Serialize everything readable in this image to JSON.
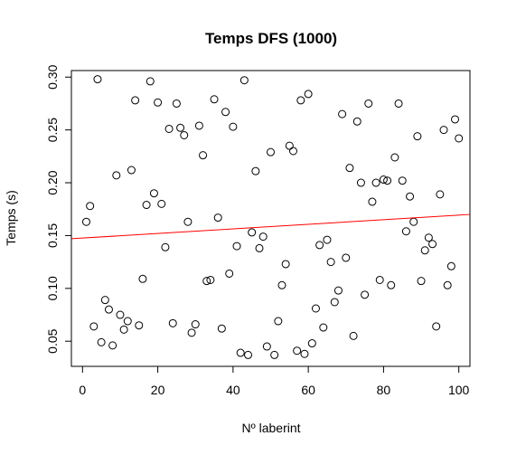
{
  "chart_data": {
    "type": "scatter",
    "title": "Temps DFS (1000)",
    "xlabel": "Nº laberint",
    "ylabel": "Temps (s)",
    "xlim": [
      -2.96,
      102.96
    ],
    "ylim": [
      0.0262,
      0.3062
    ],
    "x_ticks": [
      0,
      20,
      40,
      60,
      80,
      100
    ],
    "y_ticks": [
      0.05,
      0.1,
      0.15,
      0.2,
      0.25,
      0.3
    ],
    "x_tick_labels": [
      "0",
      "20",
      "40",
      "60",
      "80",
      "100"
    ],
    "y_tick_labels": [
      "0.05",
      "0.10",
      "0.15",
      "0.20",
      "0.25",
      "0.30"
    ],
    "grid": false,
    "legend": "none",
    "point_color": "#000000",
    "trend_color": "#ff0000",
    "trend_line": {
      "x": [
        -2.96,
        102.96
      ],
      "y": [
        0.147,
        0.17
      ]
    },
    "series": [
      {
        "x": [
          1,
          2,
          3,
          4,
          5,
          6,
          7,
          8,
          9,
          10,
          11,
          12,
          13,
          14,
          15,
          16,
          17,
          18,
          19,
          20,
          21,
          22,
          23,
          24,
          25,
          26,
          27,
          28,
          29,
          30,
          31,
          32,
          33,
          34,
          35,
          36,
          37,
          38,
          39,
          40,
          41,
          42,
          43,
          44,
          45,
          46,
          47,
          48,
          49,
          50,
          51,
          52,
          53,
          54,
          55,
          56,
          57,
          58,
          59,
          60,
          61,
          62,
          63,
          64,
          65,
          66,
          67,
          68,
          69,
          70,
          71,
          72,
          73,
          74,
          75,
          76,
          77,
          78,
          79,
          80,
          81,
          82,
          83,
          84,
          85,
          86,
          87,
          88,
          89,
          90,
          91,
          92,
          93,
          94,
          95,
          96,
          97,
          98,
          99,
          100
        ],
        "y": [
          0.163,
          0.178,
          0.064,
          0.298,
          0.049,
          0.089,
          0.08,
          0.046,
          0.207,
          0.075,
          0.061,
          0.069,
          0.212,
          0.278,
          0.065,
          0.109,
          0.179,
          0.296,
          0.19,
          0.276,
          0.18,
          0.139,
          0.251,
          0.067,
          0.275,
          0.252,
          0.245,
          0.163,
          0.058,
          0.066,
          0.254,
          0.226,
          0.107,
          0.108,
          0.279,
          0.167,
          0.062,
          0.267,
          0.114,
          0.253,
          0.14,
          0.039,
          0.297,
          0.037,
          0.153,
          0.211,
          0.138,
          0.149,
          0.045,
          0.229,
          0.037,
          0.069,
          0.103,
          0.123,
          0.235,
          0.23,
          0.041,
          0.278,
          0.038,
          0.284,
          0.048,
          0.081,
          0.141,
          0.063,
          0.146,
          0.125,
          0.087,
          0.098,
          0.265,
          0.129,
          0.214,
          0.055,
          0.258,
          0.2,
          0.094,
          0.275,
          0.182,
          0.2,
          0.108,
          0.203,
          0.202,
          0.103,
          0.224,
          0.275,
          0.202,
          0.154,
          0.187,
          0.163,
          0.244,
          0.107,
          0.136,
          0.148,
          0.142,
          0.064,
          0.189,
          0.25,
          0.103,
          0.121,
          0.26,
          0.242
        ]
      }
    ]
  }
}
